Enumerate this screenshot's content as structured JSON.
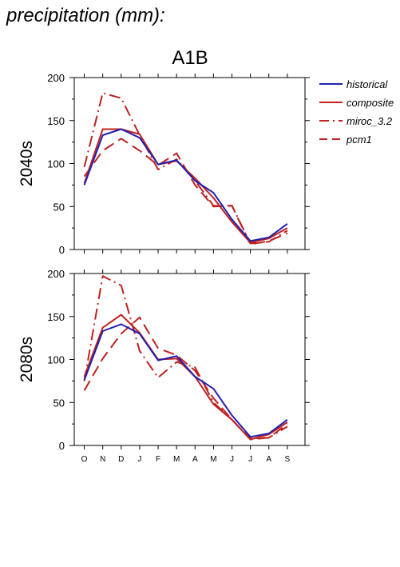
{
  "page_title": "precipitation (mm):",
  "legend": [
    {
      "label": "historical",
      "color": "#2020b0",
      "dash": "solid"
    },
    {
      "label": "composite",
      "color": "#c02020",
      "dash": "solid"
    },
    {
      "label": "miroc_3.2",
      "color": "#c02020",
      "dash": "dashdot"
    },
    {
      "label": "pcm1",
      "color": "#c02020",
      "dash": "dashed"
    }
  ],
  "chart_data": [
    {
      "type": "line",
      "title": "A1B",
      "ylabel": "2040s",
      "xlabel": "",
      "categories": [
        "O",
        "N",
        "D",
        "J",
        "F",
        "M",
        "A",
        "M",
        "J",
        "J",
        "A",
        "S"
      ],
      "ylim": [
        0,
        200
      ],
      "yticks": [
        0,
        50,
        100,
        150,
        200
      ],
      "grid": false,
      "legend_position": "right",
      "series": [
        {
          "name": "historical",
          "values": [
            75,
            133,
            140,
            130,
            99,
            104,
            80,
            66,
            35,
            10,
            14,
            30
          ]
        },
        {
          "name": "composite",
          "values": [
            77,
            140,
            140,
            134,
            99,
            103,
            83,
            60,
            32,
            8,
            13,
            25
          ]
        },
        {
          "name": "miroc_3.2",
          "values": [
            96,
            182,
            176,
            133,
            93,
            105,
            80,
            51,
            51,
            7,
            9,
            22
          ]
        },
        {
          "name": "pcm1",
          "values": [
            85,
            115,
            129,
            115,
            98,
            112,
            75,
            50,
            51,
            6,
            10,
            19
          ]
        }
      ]
    },
    {
      "type": "line",
      "title": "",
      "ylabel": "2080s",
      "xlabel": "",
      "categories": [
        "O",
        "N",
        "D",
        "J",
        "F",
        "M",
        "A",
        "M",
        "J",
        "J",
        "A",
        "S"
      ],
      "ylim": [
        0,
        200
      ],
      "yticks": [
        0,
        50,
        100,
        150,
        200
      ],
      "grid": false,
      "legend_position": "right",
      "series": [
        {
          "name": "historical",
          "values": [
            76,
            133,
            141,
            130,
            99,
            104,
            80,
            66,
            35,
            10,
            14,
            30
          ]
        },
        {
          "name": "composite",
          "values": [
            80,
            137,
            152,
            131,
            100,
            101,
            80,
            48,
            30,
            7,
            13,
            27
          ]
        },
        {
          "name": "miroc_3.2",
          "values": [
            75,
            197,
            186,
            110,
            79,
            97,
            91,
            50,
            30,
            8,
            9,
            22
          ]
        },
        {
          "name": "pcm1",
          "values": [
            64,
            101,
            130,
            149,
            113,
            105,
            87,
            55,
            30,
            7,
            9,
            25
          ]
        }
      ]
    }
  ]
}
